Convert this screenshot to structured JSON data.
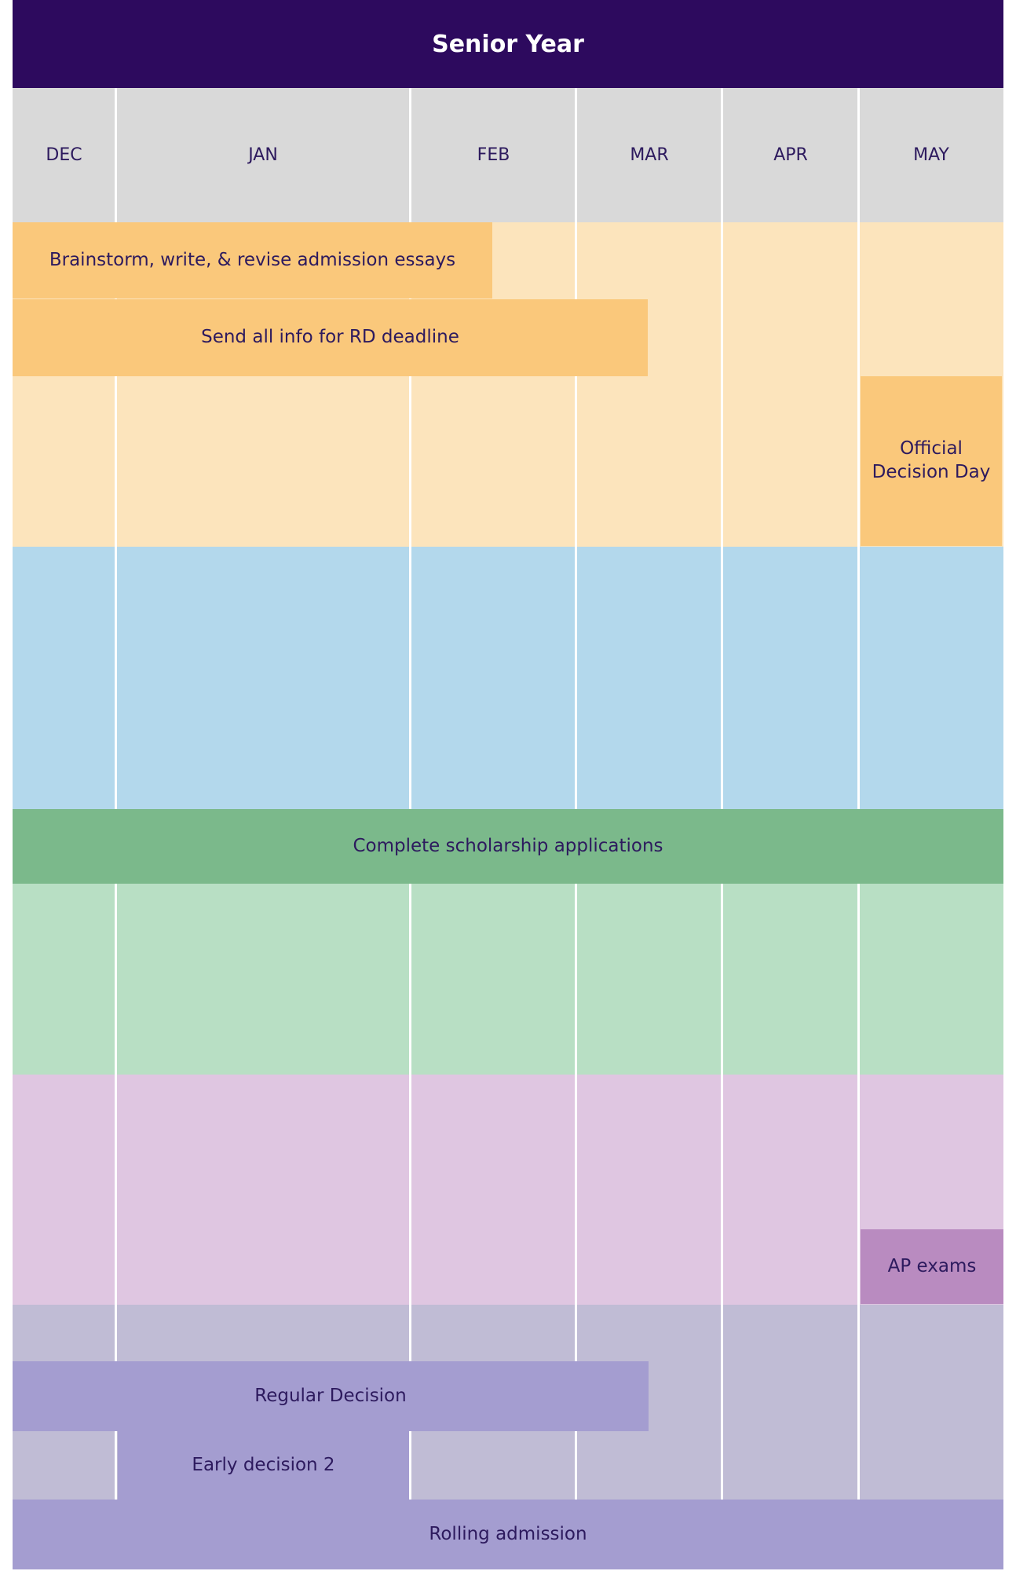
{
  "title": "Senior Year",
  "months": [
    "DEC",
    "JAN",
    "FEB",
    "MAR",
    "APR",
    "MAY"
  ],
  "bars": {
    "essays": "Brainstorm, write, & revise admission essays",
    "rd_info": "Send all info for RD deadline",
    "decision_day": "Official Decision Day",
    "scholarships": "Complete scholarship applications",
    "ap_exams": "AP exams",
    "regular_decision": "Regular Decision",
    "early_decision_2": "Early decision 2",
    "rolling_admission": "Rolling admission"
  },
  "colors": {
    "header": "#2d0a5e",
    "month_row": "#d9d9d9",
    "orange_band": "#fce4bc",
    "orange_bar": "#fac87b",
    "blue_band": "#b3d8ec",
    "green_band": "#b8dfc4",
    "green_bar": "#7bb98b",
    "pink_band": "#dfc6e1",
    "pink_bar": "#b98bc0",
    "lavender_band": "#c0bcd5",
    "lavender_bar": "#a49dd0",
    "text": "#2d1a5e"
  }
}
